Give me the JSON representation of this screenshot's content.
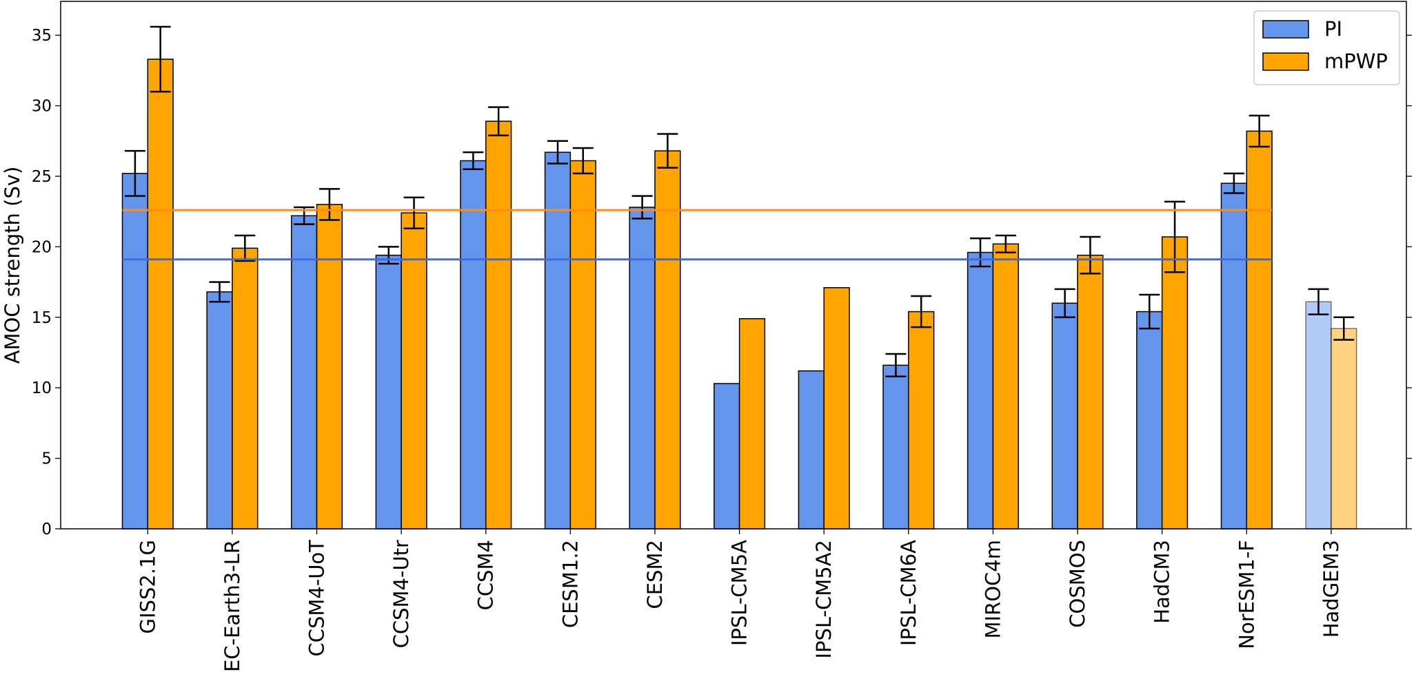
{
  "chart_data": {
    "type": "bar",
    "y_label": "AMOC strength (Sv)",
    "categories": [
      "GISS2.1G",
      "EC-Earth3-LR",
      "CCSM4-UoT",
      "CCSM4-Utr",
      "CCSM4",
      "CESM1.2",
      "CESM2",
      "IPSL-CM5A",
      "IPSL-CM5A2",
      "IPSL-CM6A",
      "MIROC4m",
      "COSMOS",
      "HadCM3",
      "NorESM1-F",
      "HadGEM3"
    ],
    "series": [
      {
        "name": "PI",
        "color": "#6495ed",
        "mean": 19.1,
        "mean_color": "#4169e1",
        "values": [
          25.2,
          16.8,
          22.2,
          19.4,
          26.1,
          26.7,
          22.8,
          10.3,
          11.2,
          11.6,
          19.6,
          16.0,
          15.4,
          24.5,
          16.1
        ],
        "errors": [
          1.6,
          0.7,
          0.6,
          0.6,
          0.6,
          0.8,
          0.8,
          null,
          null,
          0.8,
          1.0,
          1.0,
          1.2,
          0.7,
          0.9
        ],
        "opacity": [
          1,
          1,
          1,
          1,
          1,
          1,
          1,
          1,
          1,
          1,
          1,
          1,
          1,
          1,
          0.5
        ]
      },
      {
        "name": "mPWP",
        "color": "#ffa500",
        "mean": 22.6,
        "mean_color": "#ff8c1a",
        "values": [
          33.3,
          19.9,
          23.0,
          22.4,
          28.9,
          26.1,
          26.8,
          14.9,
          17.1,
          15.4,
          20.2,
          19.4,
          20.7,
          28.2,
          14.2
        ],
        "errors": [
          2.3,
          0.9,
          1.1,
          1.1,
          1.0,
          0.9,
          1.2,
          null,
          null,
          1.1,
          0.6,
          1.3,
          2.5,
          1.1,
          0.8
        ],
        "opacity": [
          1,
          1,
          1,
          1,
          1,
          1,
          1,
          1,
          1,
          1,
          1,
          1,
          1,
          1,
          0.5
        ]
      }
    ],
    "ylim": [
      0,
      37.4
    ],
    "yticks": [
      0,
      5,
      10,
      15,
      20,
      25,
      30,
      35
    ],
    "grid": false,
    "legend": "upper right"
  }
}
